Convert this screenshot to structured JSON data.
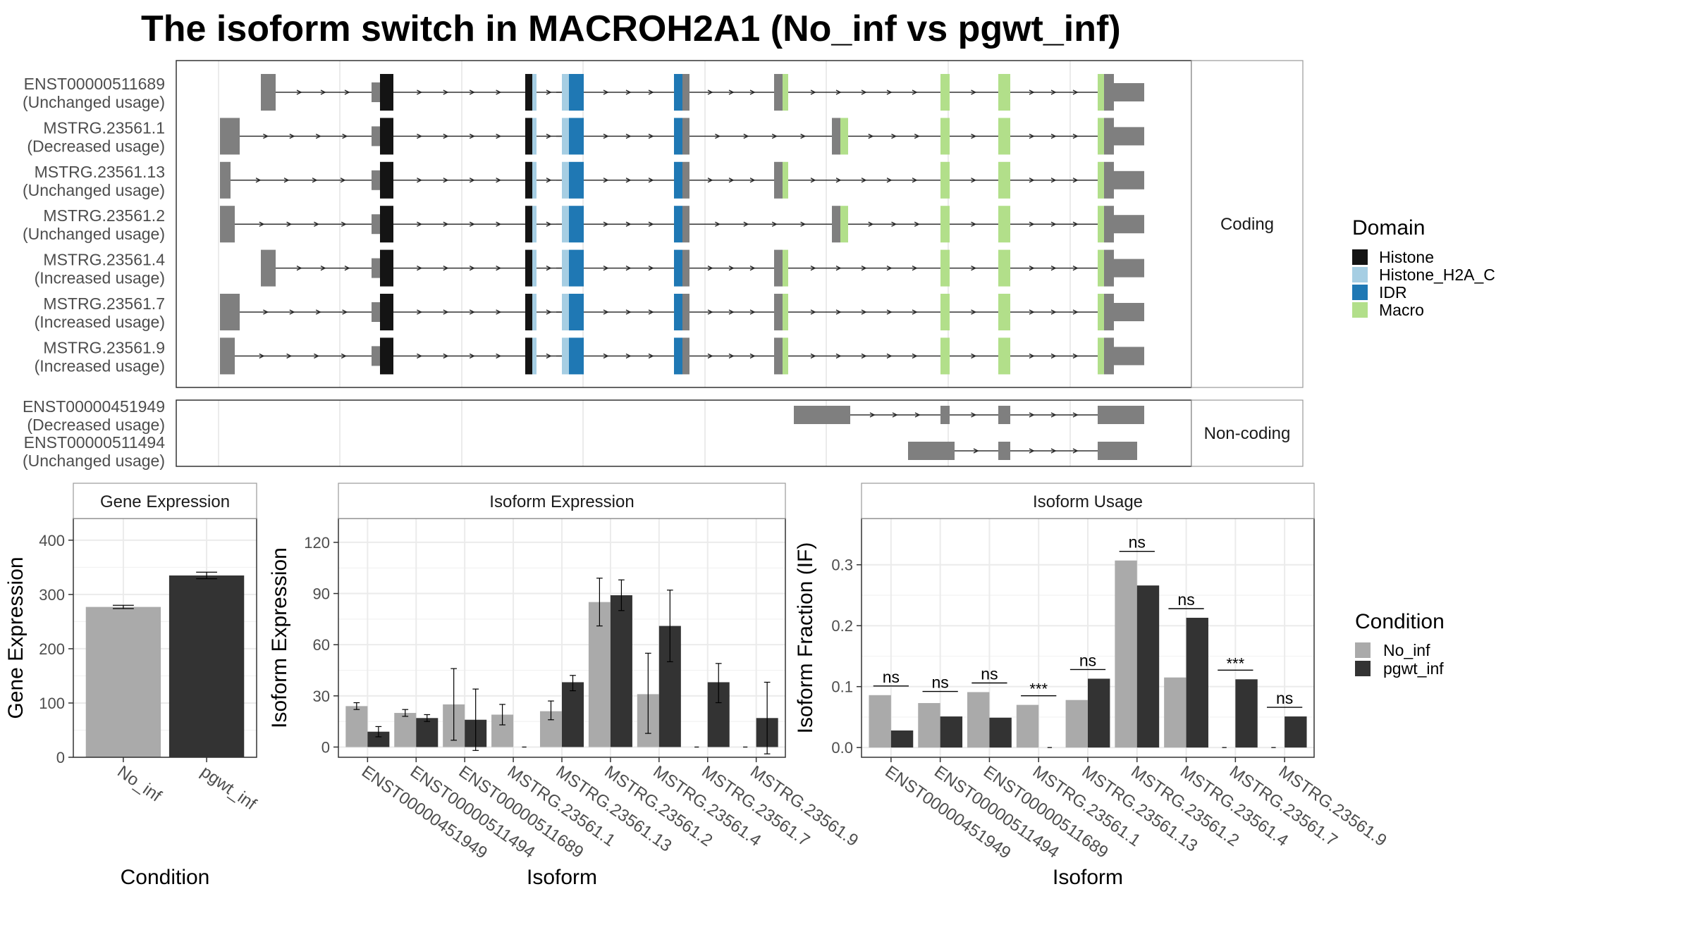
{
  "title": "The isoform switch in MACROH2A1 (No_inf vs pgwt_inf)",
  "colors": {
    "Histone": "#141414",
    "Histone_H2A_C": "#A6CEE3",
    "IDR": "#1F78B4",
    "Macro": "#B2DF8A",
    "exon": "#7F7F7F",
    "No_inf": "#AAAAAA",
    "pgwt_inf": "#333333"
  },
  "legend_domain": {
    "title": "Domain",
    "entries": [
      "Histone",
      "Histone_H2A_C",
      "IDR",
      "Macro"
    ]
  },
  "legend_condition": {
    "title": "Condition",
    "entries": [
      "No_inf",
      "pgwt_inf"
    ]
  },
  "structure": {
    "coding_label": "Coding",
    "noncoding_label": "Non-coding",
    "coding": [
      {
        "name": "ENST00000511689",
        "usage": "(Unchanged usage)",
        "first": "b",
        "exon5": "a"
      },
      {
        "name": "MSTRG.23561.1",
        "usage": "(Decreased usage)",
        "first": "a",
        "exon5": "b"
      },
      {
        "name": "MSTRG.23561.13",
        "usage": "(Unchanged usage)",
        "first": "c",
        "exon5": "a"
      },
      {
        "name": "MSTRG.23561.2",
        "usage": "(Unchanged usage)",
        "first": "d",
        "exon5": "b"
      },
      {
        "name": "MSTRG.23561.4",
        "usage": "(Increased usage)",
        "first": "b",
        "exon5": "a"
      },
      {
        "name": "MSTRG.23561.7",
        "usage": "(Increased usage)",
        "first": "a",
        "exon5": "a"
      },
      {
        "name": "MSTRG.23561.9",
        "usage": "(Increased usage)",
        "first": "d",
        "exon5": "a"
      }
    ],
    "noncoding": [
      {
        "name": "ENST00000451949",
        "usage": "(Decreased usage)"
      },
      {
        "name": "ENST00000511494",
        "usage": "(Unchanged usage)"
      }
    ]
  },
  "chart_data": [
    {
      "type": "bar",
      "title": "Gene Expression",
      "xlabel": "Condition",
      "ylabel": "Gene Expression",
      "categories": [
        "No_inf",
        "pgwt_inf"
      ],
      "values": [
        277,
        335
      ],
      "errors": [
        [
          274,
          280
        ],
        [
          329,
          341
        ]
      ],
      "ylim": [
        0,
        440
      ],
      "yticks": [
        0,
        100,
        200,
        300,
        400
      ],
      "grid": true
    },
    {
      "type": "bar",
      "title": "Isoform Expression",
      "xlabel": "Isoform",
      "ylabel": "Isoform Expression",
      "categories": [
        "ENST00000451949",
        "ENST00000511494",
        "ENST00000511689",
        "MSTRG.23561.1",
        "MSTRG.23561.13",
        "MSTRG.23561.2",
        "MSTRG.23561.4",
        "MSTRG.23561.7",
        "MSTRG.23561.9"
      ],
      "series": [
        {
          "name": "No_inf",
          "values": [
            24,
            20,
            25,
            19,
            21,
            85,
            31,
            0,
            0
          ],
          "errors": [
            [
              22,
              26
            ],
            [
              18,
              22
            ],
            [
              4,
              46
            ],
            [
              13,
              25
            ],
            [
              16,
              27
            ],
            [
              71,
              99
            ],
            [
              8,
              55
            ],
            [
              0,
              0
            ],
            [
              0,
              0
            ]
          ]
        },
        {
          "name": "pgwt_inf",
          "values": [
            9,
            17,
            16,
            0,
            38,
            89,
            71,
            38,
            17
          ],
          "errors": [
            [
              6,
              12
            ],
            [
              15,
              19
            ],
            [
              -2,
              34
            ],
            [
              0,
              0
            ],
            [
              33,
              42
            ],
            [
              80,
              98
            ],
            [
              50,
              92
            ],
            [
              26,
              49
            ],
            [
              -4,
              38
            ]
          ]
        }
      ],
      "ylim": [
        -6,
        134
      ],
      "yticks": [
        0,
        30,
        60,
        90,
        120
      ],
      "grid": true
    },
    {
      "type": "bar",
      "title": "Isoform Usage",
      "xlabel": "Isoform",
      "ylabel": "Isoform Fraction (IF)",
      "categories": [
        "ENST00000451949",
        "ENST00000511494",
        "ENST00000511689",
        "MSTRG.23561.1",
        "MSTRG.23561.13",
        "MSTRG.23561.2",
        "MSTRG.23561.4",
        "MSTRG.23561.7",
        "MSTRG.23561.9"
      ],
      "series": [
        {
          "name": "No_inf",
          "values": [
            0.086,
            0.073,
            0.091,
            0.07,
            0.078,
            0.307,
            0.115,
            0,
            0
          ]
        },
        {
          "name": "pgwt_inf",
          "values": [
            0.028,
            0.051,
            0.049,
            0,
            0.113,
            0.266,
            0.213,
            0.112,
            0.051
          ]
        }
      ],
      "annotations": [
        "ns",
        "ns",
        "ns",
        "***",
        "ns",
        "ns",
        "ns",
        "***",
        "ns"
      ],
      "annotation_y": [
        0.101,
        0.092,
        0.106,
        0.085,
        0.128,
        0.322,
        0.228,
        0.127,
        0.066
      ],
      "ylim": [
        -0.016,
        0.376
      ],
      "yticks": [
        0.0,
        0.1,
        0.2,
        0.3
      ],
      "ytick_labels": [
        "0.0",
        "0.1",
        "0.2",
        "0.3"
      ],
      "grid": true
    }
  ]
}
